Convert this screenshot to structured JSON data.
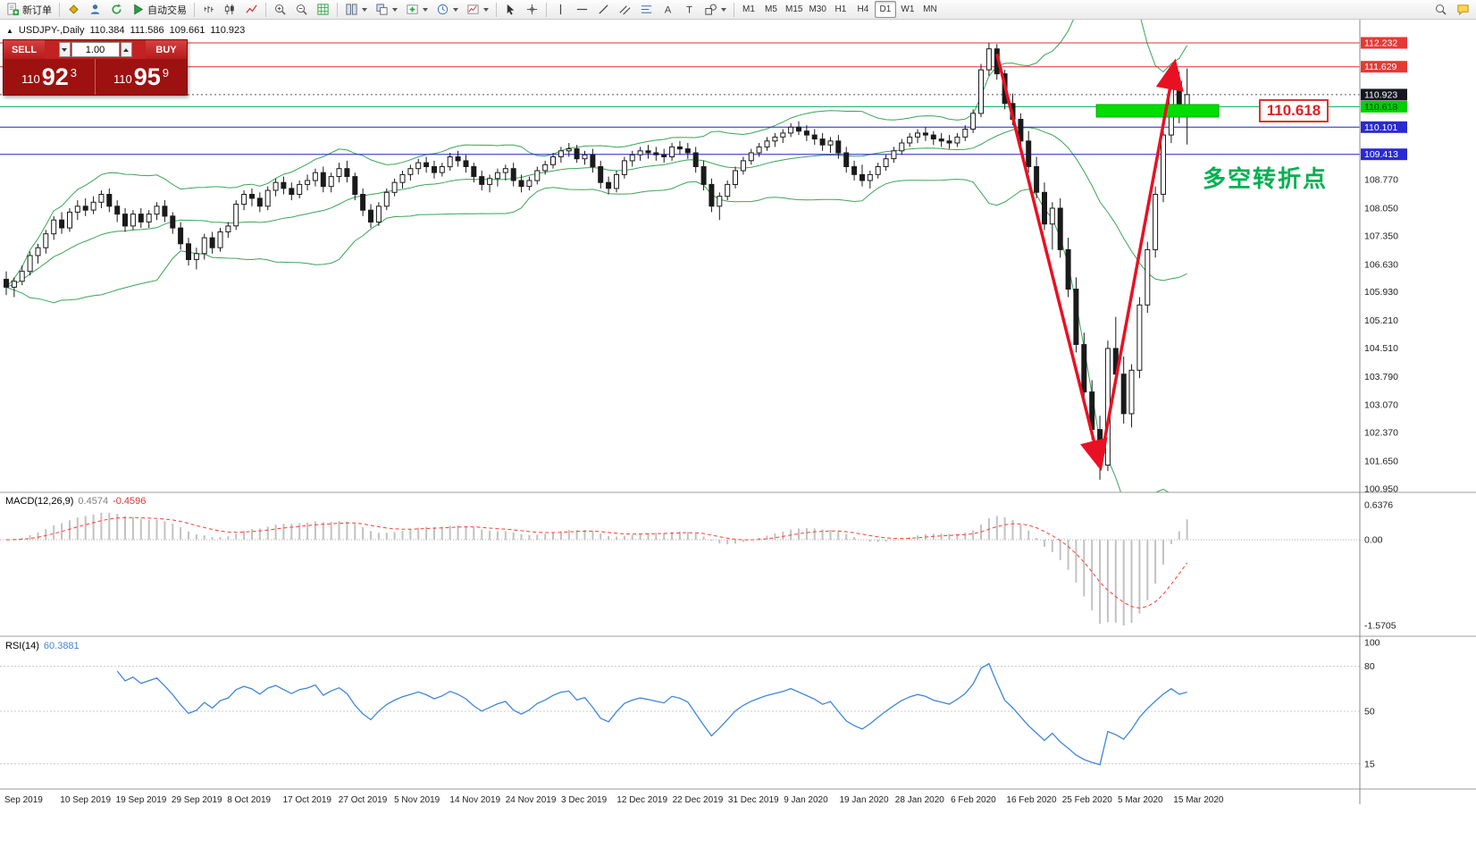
{
  "toolbar": {
    "new_order_label": "新订单",
    "autotrading_label": "自动交易",
    "items": [
      {
        "name": "new-order-button",
        "icon": "doc-plus",
        "label": "新订单"
      },
      {
        "type": "sep"
      },
      {
        "name": "market-watch-button",
        "icon": "diamond"
      },
      {
        "name": "data-window-button",
        "icon": "person"
      },
      {
        "name": "navigator-button",
        "icon": "refresh"
      },
      {
        "name": "autotrading-button",
        "icon": "play",
        "label": "自动交易"
      },
      {
        "type": "sep"
      },
      {
        "name": "bar-chart-button",
        "icon": "bars"
      },
      {
        "name": "candlestick-chart-button",
        "icon": "candles"
      },
      {
        "name": "line-chart-button",
        "icon": "line"
      },
      {
        "type": "sep"
      },
      {
        "name": "zoom-in-button",
        "icon": "zoom-in"
      },
      {
        "name": "zoom-out-button",
        "icon": "zoom-out"
      },
      {
        "name": "indicator-list-button",
        "icon": "grid"
      },
      {
        "type": "sep"
      },
      {
        "name": "tile-windows-button",
        "icon": "tile",
        "caret": true
      },
      {
        "name": "arrange-windows-button",
        "icon": "tile2",
        "caret": true
      },
      {
        "name": "new-chart-button",
        "icon": "plus",
        "caret": true
      },
      {
        "name": "periods-button",
        "icon": "clock",
        "caret": true
      },
      {
        "name": "templates-button",
        "icon": "template",
        "caret": true
      },
      {
        "type": "sep"
      },
      {
        "name": "cursor-button",
        "icon": "cursor"
      },
      {
        "name": "crosshair-button",
        "icon": "crosshair"
      },
      {
        "type": "sep"
      },
      {
        "name": "vertical-line-button",
        "icon": "vline"
      },
      {
        "name": "horizontal-line-button",
        "icon": "hline"
      },
      {
        "name": "trendline-button",
        "icon": "trend"
      },
      {
        "name": "channel-button",
        "icon": "channel"
      },
      {
        "name": "fibonacci-button",
        "icon": "fibo"
      },
      {
        "name": "text-button",
        "icon": "textA"
      },
      {
        "name": "label-button",
        "icon": "textT"
      },
      {
        "name": "shapes-button",
        "icon": "shapes",
        "caret": true
      },
      {
        "type": "sep"
      }
    ],
    "timeframes": [
      "M1",
      "M5",
      "M15",
      "M30",
      "H1",
      "H4",
      "D1",
      "W1",
      "MN"
    ],
    "active_timeframe": "D1",
    "right_items": [
      {
        "name": "search-button",
        "icon": "search"
      },
      {
        "name": "community-button",
        "icon": "chat"
      }
    ]
  },
  "chart_header": {
    "marker": "▲",
    "symbol": "USDJPY-,Daily",
    "open": "110.384",
    "high": "111.586",
    "low": "109.661",
    "close": "110.923"
  },
  "trade_panel": {
    "sell_label": "SELL",
    "buy_label": "BUY",
    "volume": "1.00",
    "sell_price_prefix": "110",
    "sell_price_big": "92",
    "sell_price_sup": "3",
    "buy_price_prefix": "110",
    "buy_price_big": "95",
    "buy_price_sup": "9"
  },
  "annotations": {
    "zone_label": "110.618",
    "cn_note": "多空转折点"
  },
  "macd_panel": {
    "name": "MACD(12,26,9)",
    "main_value": "0.4574",
    "signal_value": "-0.4596",
    "axis": [
      {
        "text": "0.6376",
        "value": 0.6376
      },
      {
        "text": "0.00",
        "value": 0
      },
      {
        "text": "-1.5705",
        "value": -1.5705
      }
    ]
  },
  "rsi_panel": {
    "name": "RSI(14)",
    "value": "60.3881",
    "axis": [
      {
        "text": "100",
        "value": 100
      },
      {
        "text": "80",
        "value": 80
      },
      {
        "text": "50",
        "value": 50
      },
      {
        "text": "15",
        "value": 15
      }
    ]
  },
  "price_axis": [
    {
      "text": "112.232",
      "value": 112.232,
      "type": "red"
    },
    {
      "text": "111.629",
      "value": 111.629,
      "type": "red"
    },
    {
      "text": "110.923",
      "value": 110.923,
      "type": "current"
    },
    {
      "text": "110.618",
      "value": 110.618,
      "type": "green"
    },
    {
      "text": "110.101",
      "value": 110.101,
      "type": "blue"
    },
    {
      "text": "109.413",
      "value": 109.413,
      "type": "blue"
    },
    {
      "text": "108.770",
      "value": 108.77,
      "type": "plain"
    },
    {
      "text": "108.050",
      "value": 108.05,
      "type": "plain"
    },
    {
      "text": "107.350",
      "value": 107.35,
      "type": "plain"
    },
    {
      "text": "106.630",
      "value": 106.63,
      "type": "plain"
    },
    {
      "text": "105.930",
      "value": 105.93,
      "type": "plain"
    },
    {
      "text": "105.210",
      "value": 105.21,
      "type": "plain"
    },
    {
      "text": "104.510",
      "value": 104.51,
      "type": "plain"
    },
    {
      "text": "103.790",
      "value": 103.79,
      "type": "plain"
    },
    {
      "text": "103.070",
      "value": 103.07,
      "type": "plain"
    },
    {
      "text": "102.370",
      "value": 102.37,
      "type": "plain"
    },
    {
      "text": "101.650",
      "value": 101.65,
      "type": "plain"
    },
    {
      "text": "100.950",
      "value": 100.95,
      "type": "plain"
    }
  ],
  "date_axis": [
    "Sep 2019",
    "10 Sep 2019",
    "19 Sep 2019",
    "29 Sep 2019",
    "8 Oct 2019",
    "17 Oct 2019",
    "27 Oct 2019",
    "5 Nov 2019",
    "14 Nov 2019",
    "24 Nov 2019",
    "3 Dec 2019",
    "12 Dec 2019",
    "22 Dec 2019",
    "31 Dec 2019",
    "9 Jan 2020",
    "19 Jan 2020",
    "28 Jan 2020",
    "6 Feb 2020",
    "16 Feb 2020",
    "25 Feb 2020",
    "5 Mar 2020",
    "15 Mar 2020"
  ],
  "colors": {
    "up_candle": "#ffffff",
    "down_candle": "#1a1a1a",
    "candle_stroke": "#1a1a1a",
    "band": "#3aa558",
    "macd_hist": "#c2c2c2",
    "macd_signal": "#ff3b30",
    "rsi": "#3f87d9",
    "arrow": "#e81123",
    "zone": "#00dd00",
    "line_red": "#e03030",
    "line_blue": "#2121cc",
    "line_green": "#00b050",
    "line_current": "#555555",
    "tag_red": "#e53935",
    "tag_blue": "#2a2ad0",
    "tag_green": "#00cf00",
    "tag_current": "#16161e",
    "axis_text": "#222222",
    "separator": "#9e9e9e"
  },
  "chart_data": {
    "type": "candlestick",
    "symbol": "USDJPY",
    "timeframe": "Daily",
    "visible_price_range": [
      100.86,
      112.82
    ],
    "horizontal_lines": [
      {
        "price": 112.232,
        "color_key": "line_red"
      },
      {
        "price": 111.629,
        "color_key": "line_red"
      },
      {
        "price": 110.923,
        "color_key": "line_current",
        "style": "dotted"
      },
      {
        "price": 110.618,
        "color_key": "line_green"
      },
      {
        "price": 110.101,
        "color_key": "line_blue"
      },
      {
        "price": 109.413,
        "color_key": "line_blue"
      }
    ],
    "indicators": {
      "bollinger": {
        "period": 20,
        "deviation": 2
      },
      "macd": {
        "fast": 12,
        "slow": 26,
        "signal": 9,
        "main_value": 0.4574,
        "signal_value": -0.4596,
        "range": [
          0.6376,
          -1.5705
        ]
      },
      "rsi": {
        "period": 14,
        "value": 60.3881,
        "levels": [
          80,
          50,
          15
        ]
      }
    },
    "drawings": {
      "zone": {
        "from_bar": 138,
        "to_bar": 153,
        "price_top": 110.672,
        "price_bottom": 110.355
      },
      "arrows": [
        {
          "from_bar": 125,
          "from_price": 111.95,
          "to_bar": 138,
          "to_price": 101.55
        },
        {
          "from_bar": 138,
          "from_price": 101.55,
          "to_bar": 147.4,
          "to_price": 111.68
        }
      ]
    },
    "candles": [
      [
        106.25,
        106.45,
        105.85,
        106.05
      ],
      [
        106.05,
        106.3,
        105.8,
        106.2
      ],
      [
        106.2,
        106.6,
        106.1,
        106.45
      ],
      [
        106.45,
        106.95,
        106.35,
        106.85
      ],
      [
        106.85,
        107.15,
        106.65,
        107.05
      ],
      [
        107.05,
        107.5,
        106.9,
        107.4
      ],
      [
        107.4,
        107.85,
        107.25,
        107.75
      ],
      [
        107.75,
        107.95,
        107.4,
        107.55
      ],
      [
        107.55,
        108.05,
        107.45,
        107.95
      ],
      [
        107.95,
        108.25,
        107.75,
        108.1
      ],
      [
        108.1,
        108.3,
        107.85,
        108.0
      ],
      [
        108.0,
        108.35,
        107.9,
        108.2
      ],
      [
        108.2,
        108.5,
        108.05,
        108.4
      ],
      [
        108.4,
        108.55,
        107.95,
        108.1
      ],
      [
        108.1,
        108.25,
        107.7,
        107.9
      ],
      [
        107.9,
        108.05,
        107.45,
        107.6
      ],
      [
        107.6,
        108.0,
        107.5,
        107.9
      ],
      [
        107.9,
        108.05,
        107.55,
        107.7
      ],
      [
        107.7,
        108.0,
        107.55,
        107.9
      ],
      [
        107.9,
        108.2,
        107.75,
        108.1
      ],
      [
        108.1,
        108.25,
        107.7,
        107.85
      ],
      [
        107.85,
        107.95,
        107.4,
        107.55
      ],
      [
        107.55,
        107.7,
        107.0,
        107.15
      ],
      [
        107.15,
        107.3,
        106.6,
        106.75
      ],
      [
        106.75,
        107.05,
        106.5,
        106.9
      ],
      [
        106.9,
        107.4,
        106.75,
        107.3
      ],
      [
        107.3,
        107.45,
        106.9,
        107.05
      ],
      [
        107.05,
        107.55,
        106.95,
        107.45
      ],
      [
        107.45,
        107.7,
        107.3,
        107.6
      ],
      [
        107.6,
        108.25,
        107.5,
        108.15
      ],
      [
        108.15,
        108.5,
        108.0,
        108.4
      ],
      [
        108.4,
        108.55,
        108.1,
        108.3
      ],
      [
        108.3,
        108.45,
        107.95,
        108.1
      ],
      [
        108.1,
        108.6,
        108.0,
        108.5
      ],
      [
        108.5,
        108.8,
        108.35,
        108.7
      ],
      [
        108.7,
        108.85,
        108.4,
        108.55
      ],
      [
        108.55,
        108.7,
        108.25,
        108.4
      ],
      [
        108.4,
        108.75,
        108.3,
        108.65
      ],
      [
        108.65,
        108.9,
        108.5,
        108.75
      ],
      [
        108.75,
        109.05,
        108.6,
        108.95
      ],
      [
        108.95,
        109.1,
        108.45,
        108.6
      ],
      [
        108.6,
        108.95,
        108.45,
        108.85
      ],
      [
        108.85,
        109.2,
        108.7,
        109.05
      ],
      [
        109.05,
        109.25,
        108.7,
        108.85
      ],
      [
        108.85,
        108.95,
        108.25,
        108.4
      ],
      [
        108.4,
        108.55,
        107.85,
        108.0
      ],
      [
        108.0,
        108.15,
        107.55,
        107.7
      ],
      [
        107.7,
        108.2,
        107.6,
        108.1
      ],
      [
        108.1,
        108.55,
        108.0,
        108.45
      ],
      [
        108.45,
        108.8,
        108.35,
        108.7
      ],
      [
        108.7,
        109.0,
        108.55,
        108.9
      ],
      [
        108.9,
        109.15,
        108.75,
        109.05
      ],
      [
        109.05,
        109.3,
        108.9,
        109.2
      ],
      [
        109.2,
        109.35,
        108.95,
        109.1
      ],
      [
        109.1,
        109.25,
        108.8,
        108.95
      ],
      [
        108.95,
        109.2,
        108.85,
        109.1
      ],
      [
        109.1,
        109.45,
        109.0,
        109.35
      ],
      [
        109.35,
        109.5,
        109.1,
        109.25
      ],
      [
        109.25,
        109.4,
        108.95,
        109.1
      ],
      [
        109.1,
        109.2,
        108.7,
        108.85
      ],
      [
        108.85,
        109.0,
        108.5,
        108.65
      ],
      [
        108.65,
        108.9,
        108.45,
        108.8
      ],
      [
        108.8,
        109.05,
        108.6,
        108.95
      ],
      [
        108.95,
        109.15,
        108.75,
        109.05
      ],
      [
        109.05,
        109.2,
        108.6,
        108.75
      ],
      [
        108.75,
        108.9,
        108.45,
        108.6
      ],
      [
        108.6,
        108.85,
        108.5,
        108.75
      ],
      [
        108.75,
        109.1,
        108.65,
        109.0
      ],
      [
        109.0,
        109.25,
        108.9,
        109.15
      ],
      [
        109.15,
        109.45,
        109.05,
        109.35
      ],
      [
        109.35,
        109.6,
        109.2,
        109.5
      ],
      [
        109.5,
        109.7,
        109.35,
        109.55
      ],
      [
        109.55,
        109.65,
        109.2,
        109.3
      ],
      [
        109.3,
        109.5,
        109.15,
        109.4
      ],
      [
        109.4,
        109.55,
        108.95,
        109.1
      ],
      [
        109.1,
        109.25,
        108.55,
        108.7
      ],
      [
        108.7,
        108.85,
        108.4,
        108.55
      ],
      [
        108.55,
        109.0,
        108.45,
        108.9
      ],
      [
        108.9,
        109.35,
        108.8,
        109.25
      ],
      [
        109.25,
        109.5,
        109.1,
        109.4
      ],
      [
        109.4,
        109.6,
        109.25,
        109.5
      ],
      [
        109.5,
        109.65,
        109.3,
        109.45
      ],
      [
        109.45,
        109.6,
        109.25,
        109.4
      ],
      [
        109.4,
        109.55,
        109.2,
        109.35
      ],
      [
        109.35,
        109.7,
        109.25,
        109.6
      ],
      [
        109.6,
        109.75,
        109.4,
        109.55
      ],
      [
        109.55,
        109.7,
        109.3,
        109.45
      ],
      [
        109.45,
        109.6,
        108.95,
        109.1
      ],
      [
        109.1,
        109.25,
        108.5,
        108.65
      ],
      [
        108.65,
        108.8,
        107.95,
        108.1
      ],
      [
        108.1,
        108.45,
        107.75,
        108.35
      ],
      [
        108.35,
        108.75,
        108.25,
        108.65
      ],
      [
        108.65,
        109.1,
        108.55,
        109.0
      ],
      [
        109.0,
        109.35,
        108.9,
        109.25
      ],
      [
        109.25,
        109.55,
        109.15,
        109.45
      ],
      [
        109.45,
        109.7,
        109.35,
        109.6
      ],
      [
        109.6,
        109.85,
        109.5,
        109.75
      ],
      [
        109.75,
        109.95,
        109.6,
        109.85
      ],
      [
        109.85,
        110.05,
        109.7,
        109.95
      ],
      [
        109.95,
        110.2,
        109.85,
        110.1
      ],
      [
        110.1,
        110.25,
        109.9,
        110.0
      ],
      [
        110.0,
        110.15,
        109.75,
        109.9
      ],
      [
        109.9,
        110.05,
        109.65,
        109.8
      ],
      [
        109.8,
        109.95,
        109.5,
        109.65
      ],
      [
        109.65,
        109.85,
        109.45,
        109.75
      ],
      [
        109.75,
        109.9,
        109.3,
        109.45
      ],
      [
        109.45,
        109.6,
        108.95,
        109.1
      ],
      [
        109.1,
        109.25,
        108.75,
        108.9
      ],
      [
        108.9,
        109.15,
        108.6,
        108.75
      ],
      [
        108.75,
        109.0,
        108.55,
        108.9
      ],
      [
        108.9,
        109.2,
        108.8,
        109.1
      ],
      [
        109.1,
        109.4,
        109.0,
        109.3
      ],
      [
        109.3,
        109.6,
        109.2,
        109.5
      ],
      [
        109.5,
        109.8,
        109.4,
        109.7
      ],
      [
        109.7,
        109.95,
        109.6,
        109.85
      ],
      [
        109.85,
        110.05,
        109.7,
        109.95
      ],
      [
        109.95,
        110.1,
        109.75,
        109.9
      ],
      [
        109.9,
        110.0,
        109.65,
        109.8
      ],
      [
        109.8,
        109.95,
        109.6,
        109.75
      ],
      [
        109.75,
        109.9,
        109.55,
        109.7
      ],
      [
        109.7,
        109.95,
        109.6,
        109.85
      ],
      [
        109.85,
        110.15,
        109.75,
        110.05
      ],
      [
        110.05,
        110.55,
        109.95,
        110.45
      ],
      [
        110.45,
        111.7,
        110.35,
        111.55
      ],
      [
        111.55,
        112.23,
        111.4,
        112.08
      ],
      [
        112.08,
        112.2,
        111.3,
        111.45
      ],
      [
        111.45,
        111.55,
        110.55,
        110.7
      ],
      [
        110.7,
        110.95,
        110.15,
        110.3
      ],
      [
        110.3,
        110.45,
        109.6,
        109.75
      ],
      [
        109.75,
        110.0,
        108.95,
        109.1
      ],
      [
        109.1,
        109.35,
        108.3,
        108.45
      ],
      [
        108.45,
        108.7,
        107.5,
        107.65
      ],
      [
        107.65,
        108.2,
        107.0,
        108.05
      ],
      [
        108.05,
        108.3,
        106.8,
        107.0
      ],
      [
        107.0,
        107.3,
        105.8,
        106.0
      ],
      [
        106.0,
        106.3,
        104.4,
        104.6
      ],
      [
        104.6,
        104.9,
        103.2,
        103.4
      ],
      [
        103.4,
        103.7,
        102.2,
        102.45
      ],
      [
        102.45,
        102.8,
        101.18,
        101.55
      ],
      [
        101.55,
        104.7,
        101.4,
        104.5
      ],
      [
        104.5,
        105.3,
        103.6,
        103.85
      ],
      [
        103.85,
        104.3,
        102.6,
        102.85
      ],
      [
        102.85,
        104.1,
        102.5,
        103.95
      ],
      [
        103.95,
        105.8,
        103.75,
        105.6
      ],
      [
        105.6,
        107.2,
        105.4,
        107.0
      ],
      [
        107.0,
        108.6,
        106.8,
        108.4
      ],
      [
        108.4,
        110.1,
        108.2,
        109.9
      ],
      [
        109.9,
        111.45,
        109.7,
        111.25
      ],
      [
        111.25,
        111.5,
        110.2,
        110.45
      ],
      [
        110.384,
        111.586,
        109.661,
        110.923
      ]
    ]
  }
}
